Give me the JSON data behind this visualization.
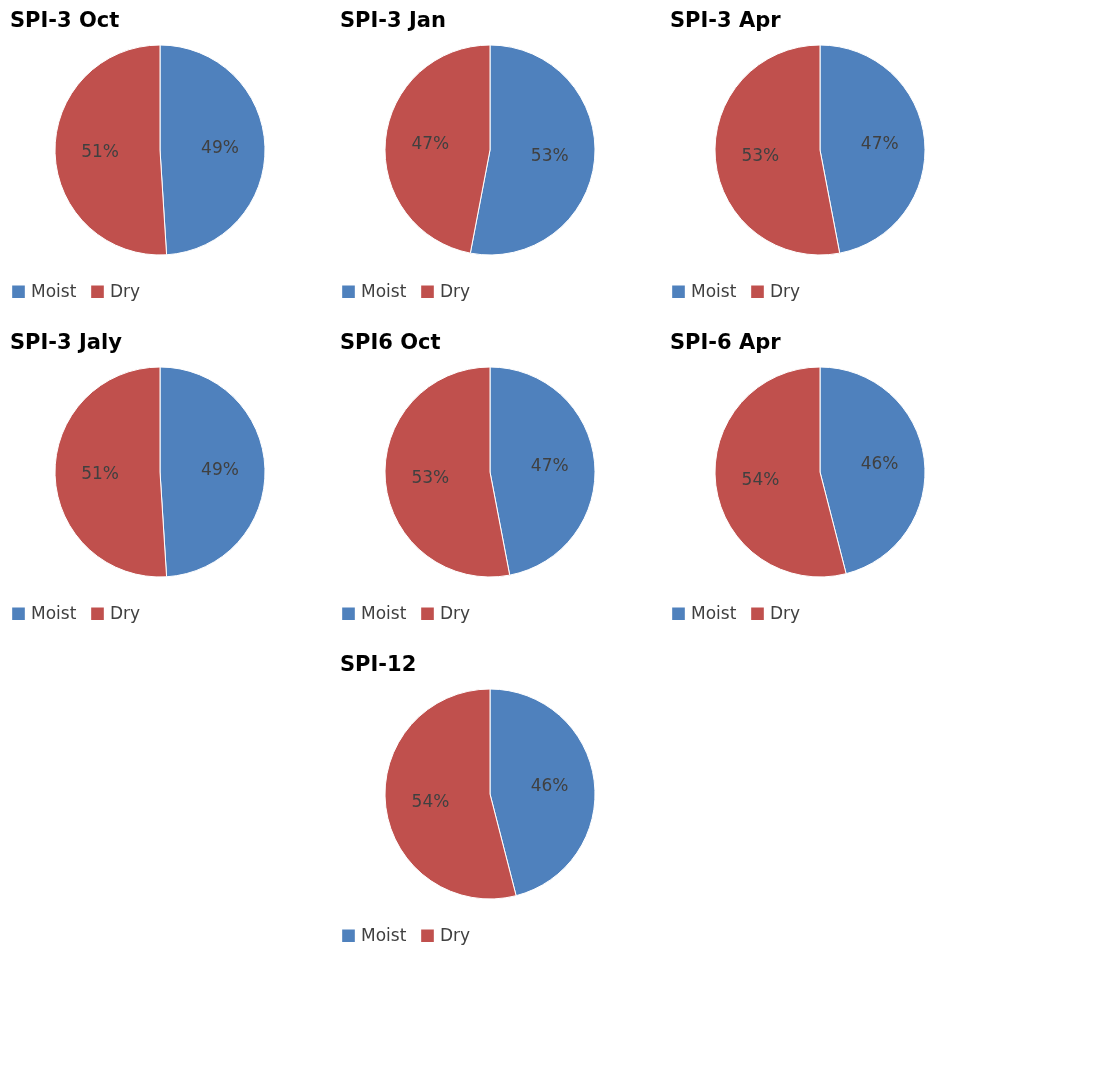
{
  "chart_data": [
    {
      "type": "pie",
      "title": "SPI-3 Oct",
      "categories": [
        "Moist",
        "Dry"
      ],
      "values": [
        49,
        51
      ],
      "value_labels": [
        "49%",
        "51%"
      ],
      "colors": [
        "#4f81bd",
        "#c0504d"
      ],
      "legend": "bottom"
    },
    {
      "type": "pie",
      "title": "SPI-3 Jan",
      "categories": [
        "Moist",
        "Dry"
      ],
      "values": [
        53,
        47
      ],
      "value_labels": [
        "53%",
        "47%"
      ],
      "colors": [
        "#4f81bd",
        "#c0504d"
      ],
      "legend": "bottom"
    },
    {
      "type": "pie",
      "title": "SPI-3 Apr",
      "categories": [
        "Moist",
        "Dry"
      ],
      "values": [
        47,
        53
      ],
      "value_labels": [
        "47%",
        "53%"
      ],
      "colors": [
        "#4f81bd",
        "#c0504d"
      ],
      "legend": "bottom"
    },
    {
      "type": "pie",
      "title": "SPI-3 Jaly",
      "categories": [
        "Moist",
        "Dry"
      ],
      "values": [
        49,
        51
      ],
      "value_labels": [
        "49%",
        "51%"
      ],
      "colors": [
        "#4f81bd",
        "#c0504d"
      ],
      "legend": "bottom"
    },
    {
      "type": "pie",
      "title": "SPI6 Oct",
      "categories": [
        "Moist",
        "Dry"
      ],
      "values": [
        47,
        53
      ],
      "value_labels": [
        "47%",
        "53%"
      ],
      "colors": [
        "#4f81bd",
        "#c0504d"
      ],
      "legend": "bottom"
    },
    {
      "type": "pie",
      "title": "SPI-6 Apr",
      "categories": [
        "Moist",
        "Dry"
      ],
      "values": [
        46,
        54
      ],
      "value_labels": [
        "46%",
        "54%"
      ],
      "colors": [
        "#4f81bd",
        "#c0504d"
      ],
      "legend": "bottom"
    },
    {
      "type": "pie",
      "title": "SPI-12",
      "categories": [
        "Moist",
        "Dry"
      ],
      "values": [
        46,
        54
      ],
      "value_labels": [
        "46%",
        "54%"
      ],
      "colors": [
        "#4f81bd",
        "#c0504d"
      ],
      "legend": "bottom"
    }
  ]
}
